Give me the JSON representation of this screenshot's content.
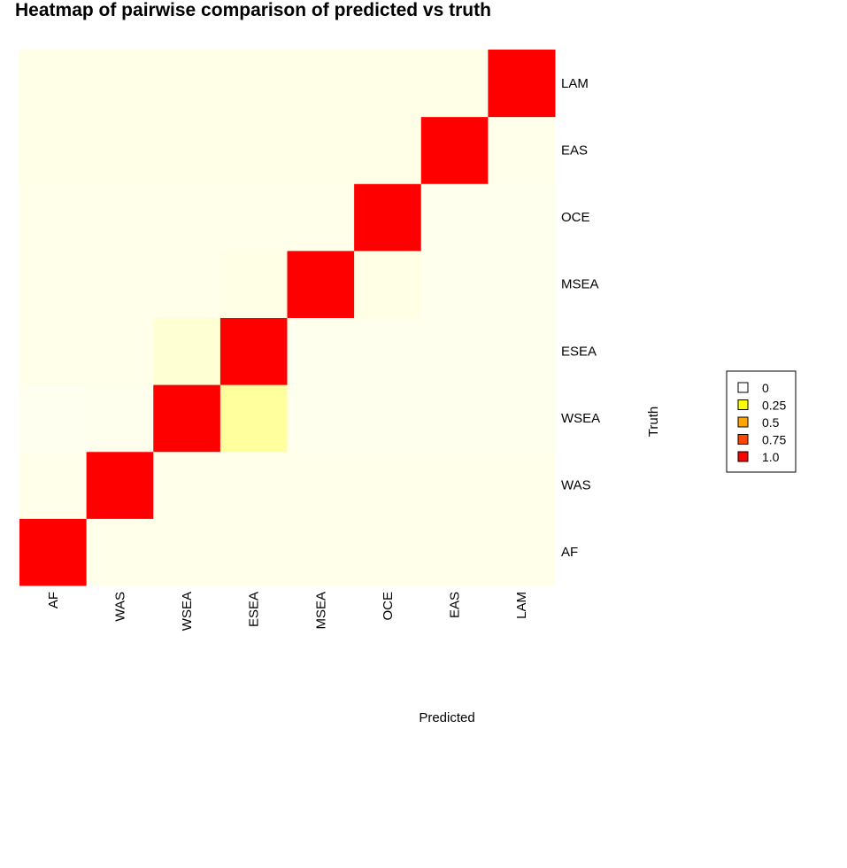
{
  "chart_data": {
    "type": "heatmap",
    "title": "Heatmap of pairwise comparison of predicted vs truth",
    "xlabel": "Predicted",
    "ylabel": "Truth",
    "x_categories": [
      "AF",
      "WAS",
      "WSEA",
      "ESEA",
      "MSEA",
      "OCE",
      "EAS",
      "LAM"
    ],
    "y_categories": [
      "AF",
      "WAS",
      "WSEA",
      "ESEA",
      "MSEA",
      "OCE",
      "EAS",
      "LAM"
    ],
    "values": [
      [
        1.0,
        0.02,
        0.02,
        0.02,
        0.02,
        0.02,
        0.02,
        0.02
      ],
      [
        0.02,
        1.0,
        0.02,
        0.02,
        0.02,
        0.02,
        0.02,
        0.02
      ],
      [
        0.0,
        0.01,
        1.0,
        0.3,
        0.01,
        0.01,
        0.01,
        0.01
      ],
      [
        0.02,
        0.02,
        0.1,
        1.0,
        0.01,
        0.01,
        0.01,
        0.01
      ],
      [
        0.02,
        0.02,
        0.02,
        0.04,
        1.0,
        0.04,
        0.01,
        0.01
      ],
      [
        0.02,
        0.02,
        0.02,
        0.02,
        0.02,
        1.0,
        0.01,
        0.01
      ],
      [
        0.03,
        0.03,
        0.03,
        0.03,
        0.03,
        0.03,
        1.0,
        0.02
      ],
      [
        0.03,
        0.03,
        0.03,
        0.03,
        0.03,
        0.03,
        0.03,
        1.0
      ]
    ],
    "color_scale": {
      "low": "#ffffff",
      "mid": "#ffff66",
      "high": "#ff0000"
    },
    "legend": {
      "placement": "right",
      "entries": [
        {
          "label": "0",
          "color": "#ffffff"
        },
        {
          "label": "0.25",
          "color": "#ffff00"
        },
        {
          "label": "0.5",
          "color": "#ffa500"
        },
        {
          "label": "0.75",
          "color": "#ff4500"
        },
        {
          "label": "1.0",
          "color": "#ff0000"
        }
      ]
    }
  }
}
